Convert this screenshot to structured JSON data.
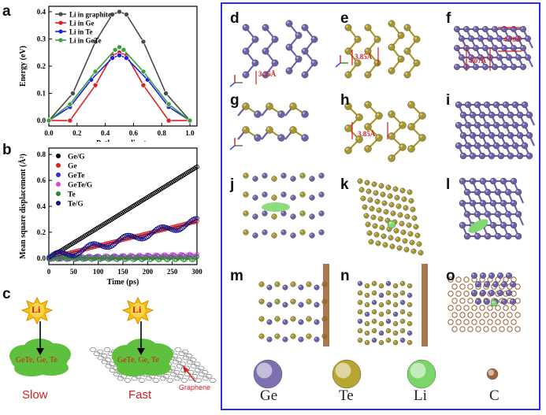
{
  "panel_letters": {
    "a": "a",
    "b": "b",
    "c": "c",
    "d": "d",
    "e": "e",
    "f": "f",
    "g": "g",
    "h": "h",
    "i": "i",
    "j": "j",
    "k": "k",
    "l": "l",
    "m": "m",
    "n": "n",
    "o": "o"
  },
  "chart_data": [
    {
      "type": "line",
      "ylabel": "Energy (eV)",
      "xlabel": "Path coordinate",
      "xlim": [
        0.0,
        1.05
      ],
      "ylim": [
        -0.02,
        0.42
      ],
      "xticks": [
        "0.0",
        "0.2",
        "0.4",
        "0.6",
        "0.8",
        "1.0"
      ],
      "yticks": [
        "0.0",
        "0.1",
        "0.2",
        "0.3",
        "0.4"
      ],
      "legend_position": "top-left",
      "series": [
        {
          "name": "Li in graphite",
          "color": "#4a4a4a",
          "x": [
            0,
            0.17,
            0.33,
            0.45,
            0.5,
            0.55,
            0.67,
            0.83,
            1.0
          ],
          "y": [
            0.0,
            0.1,
            0.29,
            0.39,
            0.4,
            0.39,
            0.29,
            0.1,
            0.0
          ]
        },
        {
          "name": "Li in Ge",
          "color": "#e02020",
          "x": [
            0,
            0.15,
            0.33,
            0.45,
            0.5,
            0.55,
            0.67,
            0.85,
            1.0
          ],
          "y": [
            0.0,
            0.0,
            0.13,
            0.24,
            0.25,
            0.24,
            0.13,
            0.0,
            0.0
          ]
        },
        {
          "name": "Li in Te",
          "color": "#2020e0",
          "x": [
            0,
            0.15,
            0.3,
            0.45,
            0.5,
            0.55,
            0.7,
            0.85,
            1.0
          ],
          "y": [
            0.0,
            0.05,
            0.15,
            0.23,
            0.24,
            0.23,
            0.15,
            0.05,
            0.0
          ]
        },
        {
          "name": "Li in GeTe",
          "color": "#3aa03a",
          "x": [
            0,
            0.15,
            0.33,
            0.47,
            0.5,
            0.53,
            0.67,
            0.85,
            1.0
          ],
          "y": [
            0.0,
            0.06,
            0.18,
            0.26,
            0.27,
            0.26,
            0.18,
            0.06,
            0.0
          ]
        }
      ]
    },
    {
      "type": "scatter",
      "ylabel": "Mean square displacement (Å²)",
      "xlabel": "Time (ps)",
      "xlim": [
        0,
        300
      ],
      "ylim": [
        -0.05,
        0.85
      ],
      "xticks": [
        "0",
        "50",
        "100",
        "150",
        "200",
        "250",
        "300"
      ],
      "yticks": [
        "0.0",
        "0.2",
        "0.4",
        "0.6",
        "0.8"
      ],
      "legend_position": "top-left",
      "series": [
        {
          "name": "Ge/G",
          "color": "#000000",
          "slope": 0.00235,
          "noise": 0.0
        },
        {
          "name": "Ge",
          "color": "#e02020",
          "slope": 0.00095,
          "noise": 0.0
        },
        {
          "name": "GeTe",
          "color": "#3030e0",
          "slope": 5e-05,
          "noise": 0.01
        },
        {
          "name": "GeTe/G",
          "color": "#e040e0",
          "slope": 7e-05,
          "noise": 0.012
        },
        {
          "name": "Te",
          "color": "#2a8a2a",
          "slope": -1e-05,
          "noise": 0.012
        },
        {
          "name": "Te/G",
          "color": "#101080",
          "slope": 0.00093,
          "noise": 0.018
        }
      ]
    }
  ],
  "panel_c": {
    "li_label": "Li",
    "materials_left": "GeTe, Ge, Te",
    "materials_right": "GeTe, Ge, Te",
    "slow": "Slow",
    "fast": "Fast",
    "graphene": "Graphene"
  },
  "measurements": {
    "d": "3.55Å",
    "e": "3.85Å",
    "f_top": "4.78Å",
    "f_left": "4.07Å",
    "h": "3.85Å"
  },
  "atom_legend": [
    {
      "label": "Ge",
      "color": "#7e6fb0"
    },
    {
      "label": "Te",
      "color": "#b7a530"
    },
    {
      "label": "Li",
      "color": "#7bd66a"
    },
    {
      "label": "C",
      "color": "#a0653a"
    }
  ],
  "colors": {
    "frame": "#2b2ef0",
    "ge": "#6e5fa8",
    "te": "#a8962a",
    "li": "#80d870",
    "c": "#9a6030",
    "red": "#d41c1c"
  }
}
